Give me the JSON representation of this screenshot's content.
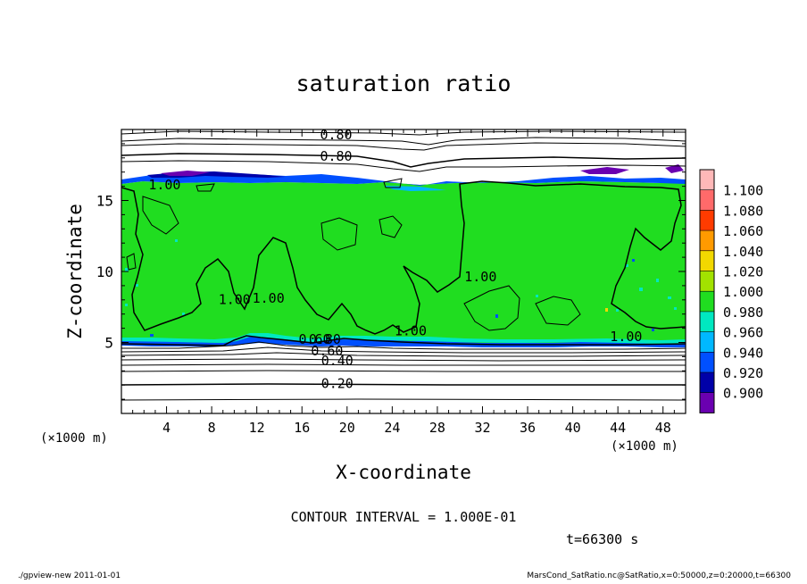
{
  "chart_data": {
    "type": "heatmap",
    "title": "saturation ratio",
    "xlabel": "X-coordinate",
    "ylabel": "Z-coordinate",
    "x_unit": "(×1000 m)",
    "y_unit": "(×1000 m)",
    "xlim": [
      0,
      50
    ],
    "ylim": [
      0,
      20
    ],
    "x_ticks": [
      4,
      8,
      12,
      16,
      20,
      24,
      28,
      32,
      36,
      40,
      44,
      48
    ],
    "y_ticks": [
      5,
      10,
      15
    ],
    "colorbar": {
      "levels": [
        1.1,
        1.08,
        1.06,
        1.04,
        1.02,
        1.0,
        0.98,
        0.96,
        0.94,
        0.92,
        0.9
      ],
      "labels": [
        "1.100",
        "1.080",
        "1.060",
        "1.040",
        "1.020",
        "1.000",
        "0.980",
        "0.960",
        "0.940",
        "0.920",
        "0.900"
      ],
      "colors": [
        "#ffb8b8",
        "#ff6a6a",
        "#ff3b00",
        "#ff9a00",
        "#f2d800",
        "#a2e200",
        "#20dd20",
        "#00e8c0",
        "#00b8ff",
        "#0050ff",
        "#0000a8",
        "#6a00b0"
      ]
    },
    "contour_labels": [
      {
        "x": 17.6,
        "y": 19.3,
        "text": "0.80"
      },
      {
        "x": 17.6,
        "y": 17.8,
        "text": "0.80"
      },
      {
        "x": 2.4,
        "y": 15.8,
        "text": "1.00"
      },
      {
        "x": 8.6,
        "y": 7.7,
        "text": "1.00"
      },
      {
        "x": 11.6,
        "y": 7.8,
        "text": "1.00"
      },
      {
        "x": 30.4,
        "y": 9.3,
        "text": "1.00"
      },
      {
        "x": 24.2,
        "y": 5.5,
        "text": "1.00"
      },
      {
        "x": 43.3,
        "y": 5.1,
        "text": "1.00"
      },
      {
        "x": 15.7,
        "y": 4.9,
        "text": "0.60"
      },
      {
        "x": 16.6,
        "y": 4.9,
        "text": "0.80"
      },
      {
        "x": 16.8,
        "y": 4.1,
        "text": "0.60"
      },
      {
        "x": 17.7,
        "y": 3.4,
        "text": "0.40"
      },
      {
        "x": 17.7,
        "y": 1.8,
        "text": "0.20"
      }
    ],
    "contour_interval_text": "CONTOUR INTERVAL = 1.000E-01",
    "time_text": "t=66300 s"
  },
  "footer": {
    "left": "./gpview-new  2011-01-01",
    "right": "MarsCond_SatRatio.nc@SatRatio,x=0:50000,z=0:20000,t=66300"
  }
}
